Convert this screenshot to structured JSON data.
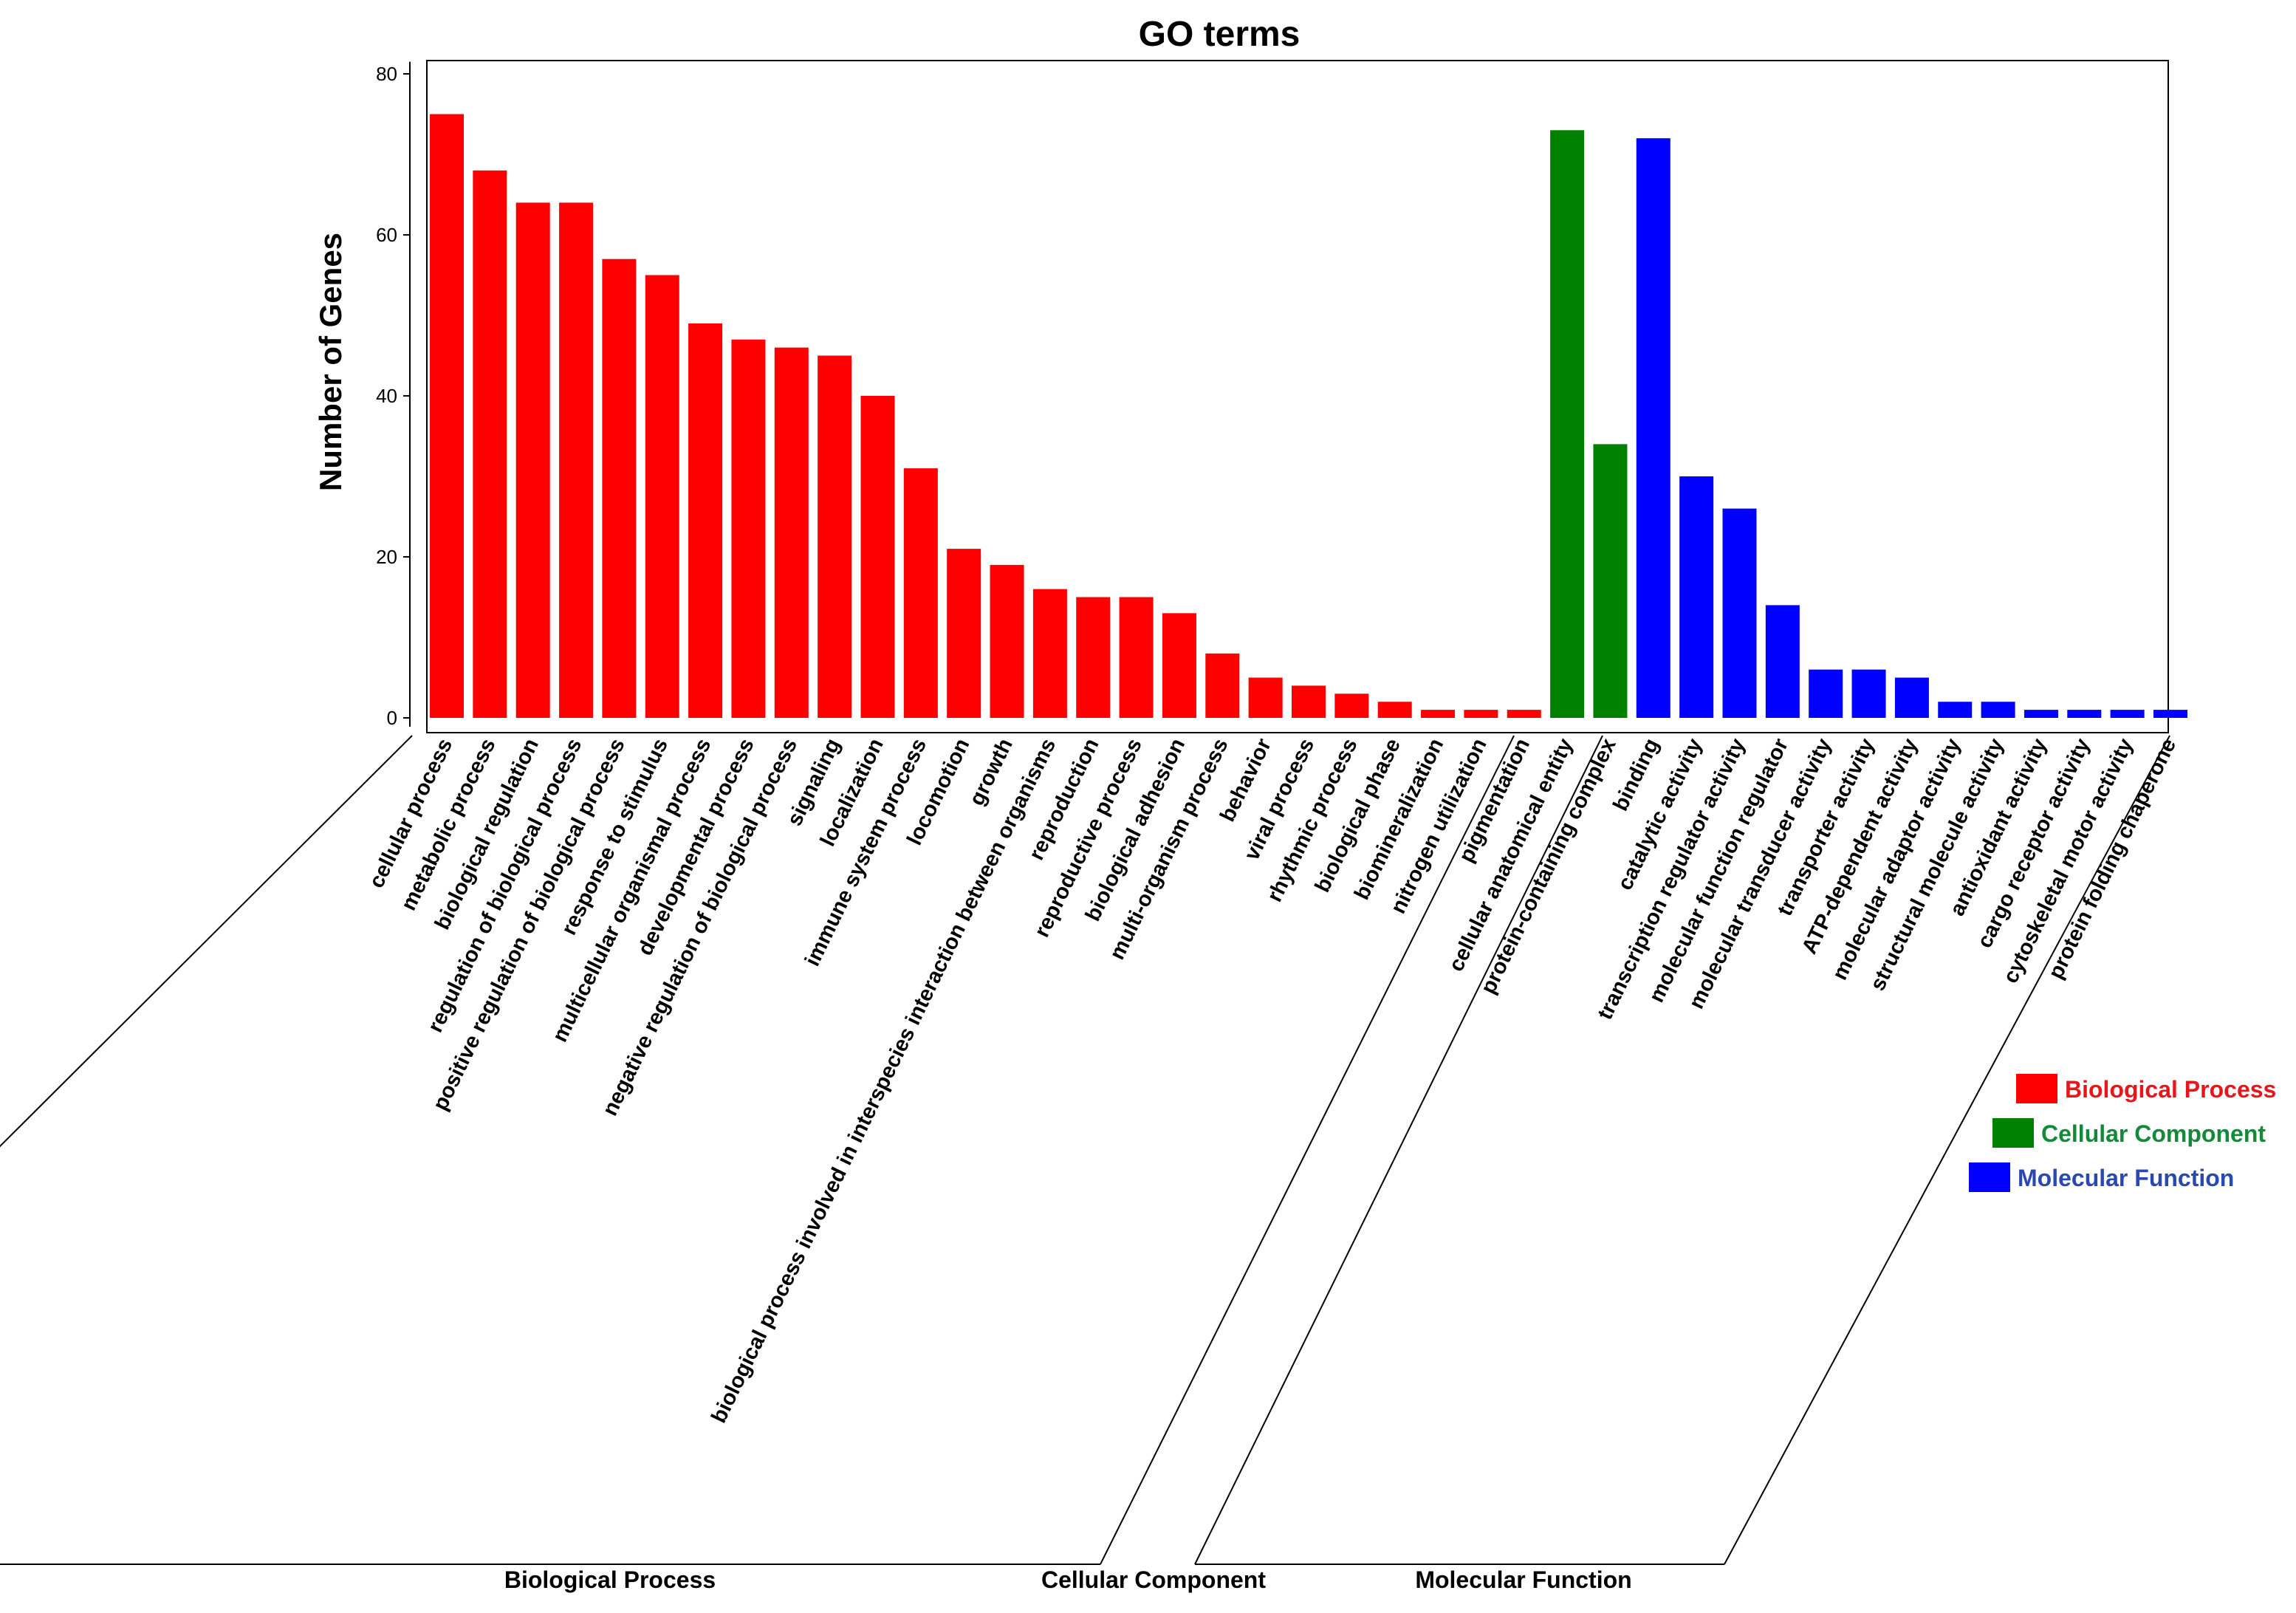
{
  "chart_data": {
    "type": "bar",
    "title": "GO terms",
    "xlabel": "",
    "ylabel": "Number of Genes",
    "ylim": [
      0,
      82
    ],
    "yticks": [
      0,
      20,
      40,
      60,
      80
    ],
    "grid": false,
    "legend_position": "right",
    "colors": {
      "Biological Process": "#ff0000",
      "Cellular Component": "#008000",
      "Molecular Function": "#0000ff"
    },
    "legend_text_colors": {
      "Biological Process": "#e8161b",
      "Cellular Component": "#138a3a",
      "Molecular Function": "#2a48b4"
    },
    "legend": [
      "Biological Process",
      "Cellular Component",
      "Molecular Function"
    ],
    "groups": [
      "Biological Process",
      "Cellular Component",
      "Molecular Function"
    ],
    "categories": [
      "cellular process",
      "metabolic process",
      "biological regulation",
      "regulation of biological process",
      "positive regulation of biological process",
      "response to stimulus",
      "multicellular organismal process",
      "developmental process",
      "negative regulation of biological process",
      "signaling",
      "localization",
      "immune system process",
      "locomotion",
      "growth",
      "biological process involved in interspecies interaction between organisms",
      "reproduction",
      "reproductive process",
      "biological adhesion",
      "multi-organism process",
      "behavior",
      "viral process",
      "rhythmic process",
      "biological phase",
      "biomineralization",
      "nitrogen utilization",
      "pigmentation",
      "cellular anatomical entity",
      "protein-containing complex",
      "binding",
      "catalytic activity",
      "transcription regulator activity",
      "molecular function regulator",
      "molecular transducer activity",
      "transporter activity",
      "ATP-dependent activity",
      "molecular adaptor activity",
      "structural molecule activity",
      "antioxidant activity",
      "cargo receptor activity",
      "cytoskeletal motor activity",
      "protein folding chaperone"
    ],
    "values": [
      75,
      68,
      64,
      64,
      57,
      55,
      49,
      47,
      46,
      45,
      40,
      31,
      21,
      19,
      16,
      15,
      15,
      13,
      8,
      5,
      4,
      3,
      2,
      1,
      1,
      1,
      73,
      34,
      72,
      30,
      26,
      14,
      6,
      6,
      5,
      2,
      2,
      1,
      1,
      1,
      1
    ],
    "group_of": [
      "Biological Process",
      "Biological Process",
      "Biological Process",
      "Biological Process",
      "Biological Process",
      "Biological Process",
      "Biological Process",
      "Biological Process",
      "Biological Process",
      "Biological Process",
      "Biological Process",
      "Biological Process",
      "Biological Process",
      "Biological Process",
      "Biological Process",
      "Biological Process",
      "Biological Process",
      "Biological Process",
      "Biological Process",
      "Biological Process",
      "Biological Process",
      "Biological Process",
      "Biological Process",
      "Biological Process",
      "Biological Process",
      "Biological Process",
      "Cellular Component",
      "Cellular Component",
      "Molecular Function",
      "Molecular Function",
      "Molecular Function",
      "Molecular Function",
      "Molecular Function",
      "Molecular Function",
      "Molecular Function",
      "Molecular Function",
      "Molecular Function",
      "Molecular Function",
      "Molecular Function",
      "Molecular Function",
      "Molecular Function"
    ]
  }
}
